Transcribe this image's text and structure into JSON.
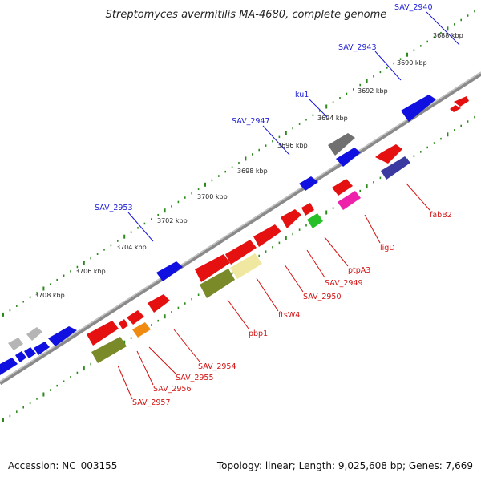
{
  "title": "Streptomyces avermitilis MA-4680, complete genome",
  "footer": {
    "accession": "Accession: NC_003155",
    "summary": "Topology: linear; Length: 9,025,608 bp; Genes: 7,669"
  },
  "ruler_labels": [
    "3688 kbp",
    "3690 kbp",
    "3692 kbp",
    "3694 kbp",
    "3696 kbp",
    "3698 kbp",
    "3700 kbp",
    "3702 kbp",
    "3704 kbp",
    "3706 kbp",
    "3708 kbp"
  ],
  "upper_gene_labels": [
    "SAV_2940",
    "SAV_2943",
    "ku1",
    "SAV_2947",
    "SAV_2953"
  ],
  "lower_gene_labels": [
    "fabB2",
    "ligD",
    "ptpA3",
    "SAV_2949",
    "SAV_2950",
    "ftsW4",
    "pbp1",
    "SAV_2954",
    "SAV_2955",
    "SAV_2956",
    "SAV_2957"
  ],
  "colors": {
    "forward_strand": "#1212dd",
    "reverse_strand": "#ee1111",
    "axis": "#8a8a8a",
    "ticks": "#2a8a1a",
    "upper_label": "#1a1ad6",
    "lower_label": "#d41111"
  }
}
